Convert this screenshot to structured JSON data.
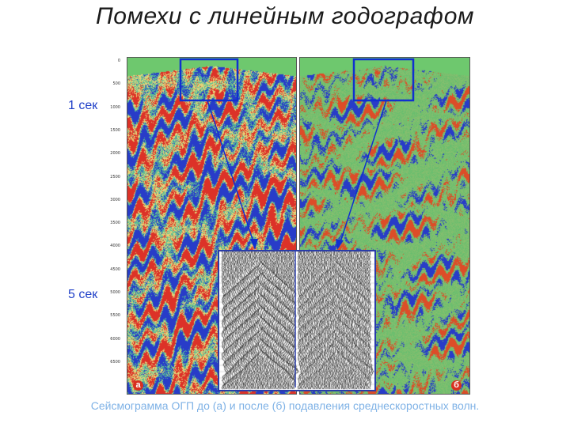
{
  "slide": {
    "title": "Помехи с линейным годографом",
    "caption": "Сейсмограмма ОГП до (а) и после (б) подавления среднескоростных волн."
  },
  "labels": {
    "time_1": "1 сек",
    "time_5": "5 сек",
    "panel_a": "а",
    "panel_b": "б"
  },
  "axis": {
    "ticks": [
      "0",
      "500",
      "1000",
      "1500",
      "2000",
      "2500",
      "3000",
      "3500",
      "4000",
      "4500",
      "5000",
      "5500",
      "6000",
      "6500"
    ]
  },
  "colors": {
    "label_blue": "#2040c8",
    "highlight_blue": "#1030d0",
    "panel_label_red": "#d83020",
    "caption": "#7fb2e6"
  }
}
